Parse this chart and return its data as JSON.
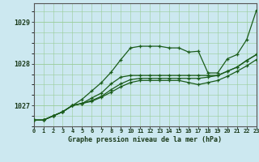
{
  "bg_color": "#cce8f0",
  "plot_bg": "#cce8f0",
  "grid_color": "#99cc99",
  "line_color": "#1a5c1a",
  "title": "Graphe pression niveau de la mer (hPa)",
  "yticks": [
    1027,
    1028,
    1029
  ],
  "xlim": [
    0,
    23
  ],
  "ylim": [
    1026.5,
    1029.45
  ],
  "series": [
    [
      1026.65,
      1026.65,
      1026.75,
      1026.85,
      1027.0,
      1027.15,
      1027.35,
      1027.55,
      1027.8,
      1028.1,
      1028.38,
      1028.42,
      1028.42,
      1028.42,
      1028.38,
      1028.38,
      1028.28,
      1028.3,
      1027.78,
      1027.78,
      1028.12,
      1028.22,
      1028.58,
      1029.28
    ],
    [
      1026.65,
      1026.65,
      1026.75,
      1026.85,
      1027.0,
      1027.05,
      1027.18,
      1027.3,
      1027.52,
      1027.68,
      1027.72,
      1027.72,
      1027.72,
      1027.72,
      1027.72,
      1027.72,
      1027.72,
      1027.72,
      1027.72,
      1027.72,
      1027.82,
      1027.92,
      1028.08,
      1028.22
    ],
    [
      1026.65,
      1026.65,
      1026.75,
      1026.85,
      1027.0,
      1027.05,
      1027.12,
      1027.22,
      1027.38,
      1027.52,
      1027.62,
      1027.65,
      1027.65,
      1027.65,
      1027.65,
      1027.65,
      1027.65,
      1027.65,
      1027.68,
      1027.72,
      1027.82,
      1027.92,
      1028.08,
      1028.22
    ],
    [
      1026.65,
      1026.65,
      1026.75,
      1026.85,
      1027.0,
      1027.05,
      1027.1,
      1027.2,
      1027.32,
      1027.45,
      1027.55,
      1027.6,
      1027.6,
      1027.6,
      1027.6,
      1027.6,
      1027.55,
      1027.5,
      1027.55,
      1027.6,
      1027.7,
      1027.82,
      1027.95,
      1028.1
    ]
  ]
}
